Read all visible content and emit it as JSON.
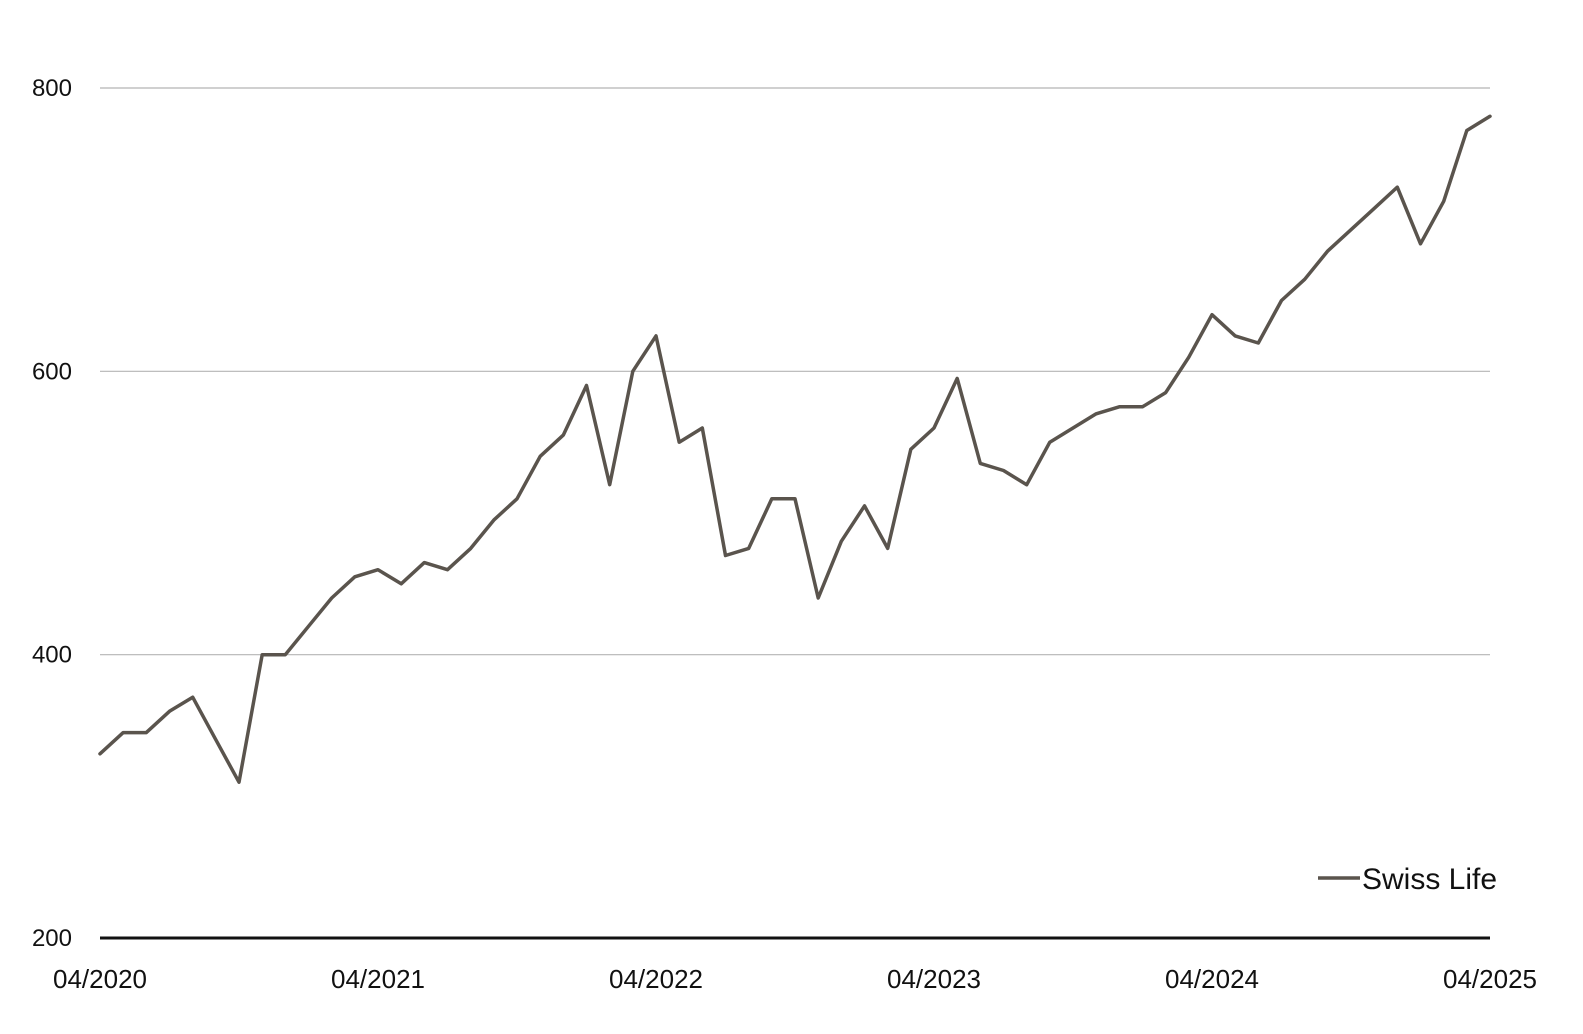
{
  "chart_data": {
    "type": "line",
    "title": "",
    "xlabel": "",
    "ylabel": "",
    "ylim": [
      200,
      800
    ],
    "xlim": [
      "04/2020",
      "04/2025"
    ],
    "y_ticks": [
      "800",
      "600",
      "400",
      "200"
    ],
    "x_ticks": [
      "04/2020",
      "04/2021",
      "04/2022",
      "04/2023",
      "04/2024",
      "04/2025"
    ],
    "grid": "horizontal",
    "legend_position": "bottom-right",
    "line_color": "#5a544d",
    "series": [
      {
        "name": "Swiss Life",
        "x": [
          "2020-04",
          "2020-05",
          "2020-06",
          "2020-07",
          "2020-08",
          "2020-09",
          "2020-10",
          "2020-11",
          "2020-12",
          "2021-01",
          "2021-02",
          "2021-03",
          "2021-04",
          "2021-05",
          "2021-06",
          "2021-07",
          "2021-08",
          "2021-09",
          "2021-10",
          "2021-11",
          "2021-12",
          "2022-01",
          "2022-02",
          "2022-03",
          "2022-04",
          "2022-05",
          "2022-06",
          "2022-07",
          "2022-08",
          "2022-09",
          "2022-10",
          "2022-11",
          "2022-12",
          "2023-01",
          "2023-02",
          "2023-03",
          "2023-04",
          "2023-05",
          "2023-06",
          "2023-07",
          "2023-08",
          "2023-09",
          "2023-10",
          "2023-11",
          "2023-12",
          "2024-01",
          "2024-02",
          "2024-03",
          "2024-04",
          "2024-05",
          "2024-06",
          "2024-07",
          "2024-08",
          "2024-09",
          "2024-10",
          "2024-11",
          "2024-12",
          "2025-01",
          "2025-02",
          "2025-03",
          "2025-04"
        ],
        "values": [
          330,
          345,
          345,
          360,
          370,
          340,
          310,
          400,
          400,
          420,
          440,
          455,
          460,
          450,
          465,
          460,
          475,
          495,
          510,
          540,
          555,
          590,
          520,
          600,
          625,
          550,
          560,
          470,
          475,
          510,
          510,
          440,
          480,
          505,
          475,
          545,
          560,
          595,
          535,
          530,
          520,
          550,
          560,
          570,
          575,
          575,
          585,
          610,
          640,
          625,
          620,
          650,
          665,
          685,
          700,
          715,
          730,
          690,
          720,
          770,
          780
        ]
      }
    ]
  }
}
